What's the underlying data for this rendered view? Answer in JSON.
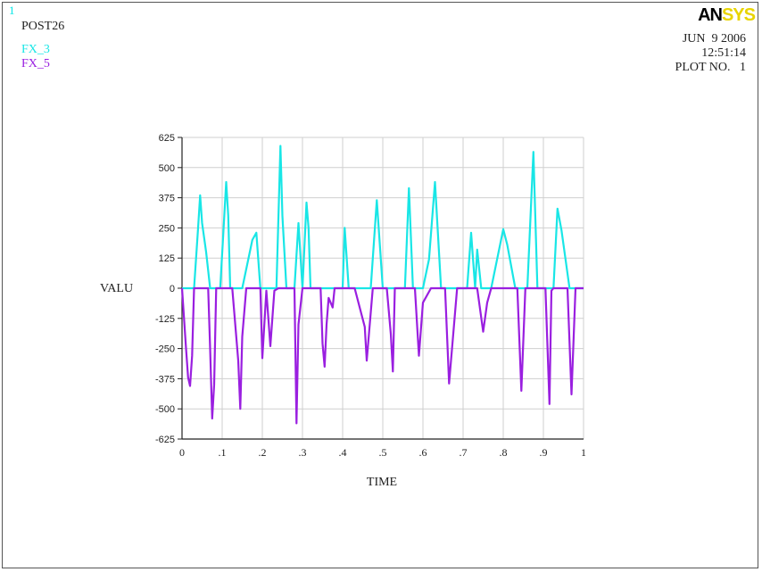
{
  "header": {
    "plot_index": "1",
    "program": "POST26",
    "logo_part1": "AN",
    "logo_part2": "SYS",
    "date": "JUN  9 2006",
    "time": "12:51:14",
    "plot_no": "PLOT NO.   1"
  },
  "colors": {
    "fx3": "#19e6e6",
    "fx5": "#9a1fe0",
    "grid": "#cfcfcf",
    "axis": "#222222"
  },
  "chart_data": {
    "type": "line",
    "xlabel": "TIME",
    "ylabel": "VALU",
    "xlim": [
      0,
      1
    ],
    "ylim": [
      -625,
      625
    ],
    "xticks": [
      0,
      0.1,
      0.2,
      0.3,
      0.4,
      0.5,
      0.6,
      0.7,
      0.8,
      0.9,
      1
    ],
    "xtick_labels": [
      "0",
      ".1",
      ".2",
      ".3",
      ".4",
      ".5",
      ".6",
      ".7",
      ".8",
      ".9",
      "1"
    ],
    "yticks": [
      625,
      500,
      375,
      250,
      125,
      0,
      -125,
      -250,
      -375,
      -500,
      -625
    ],
    "ytick_labels": [
      "625",
      "500",
      "375",
      "250",
      "125",
      "0",
      "-125",
      "-250",
      "-375",
      "-500",
      "-625"
    ],
    "grid": true,
    "legend_position": "top-left",
    "series": [
      {
        "name": "FX_3",
        "x": [
          0,
          0.03,
          0.04,
          0.045,
          0.05,
          0.06,
          0.07,
          0.095,
          0.11,
          0.115,
          0.12,
          0.13,
          0.15,
          0.175,
          0.185,
          0.195,
          0.215,
          0.235,
          0.245,
          0.25,
          0.26,
          0.28,
          0.29,
          0.3,
          0.31,
          0.315,
          0.32,
          0.335,
          0.4,
          0.405,
          0.415,
          0.455,
          0.47,
          0.485,
          0.5,
          0.555,
          0.565,
          0.575,
          0.6,
          0.615,
          0.63,
          0.645,
          0.71,
          0.72,
          0.73,
          0.735,
          0.745,
          0.77,
          0.8,
          0.81,
          0.83,
          0.86,
          0.875,
          0.885,
          0.925,
          0.935,
          0.945,
          0.965,
          1.0
        ],
        "y": [
          0,
          0,
          250,
          385,
          270,
          150,
          0,
          0,
          440,
          300,
          0,
          0,
          0,
          200,
          230,
          0,
          0,
          0,
          590,
          300,
          0,
          0,
          270,
          0,
          355,
          250,
          0,
          0,
          0,
          250,
          0,
          0,
          0,
          365,
          0,
          0,
          415,
          0,
          0,
          120,
          440,
          0,
          0,
          230,
          0,
          160,
          0,
          0,
          245,
          180,
          0,
          0,
          565,
          0,
          0,
          330,
          240,
          0,
          0
        ]
      },
      {
        "name": "FX_5",
        "x": [
          0,
          0.01,
          0.015,
          0.02,
          0.025,
          0.03,
          0.065,
          0.07,
          0.075,
          0.08,
          0.085,
          0.125,
          0.14,
          0.145,
          0.15,
          0.16,
          0.195,
          0.2,
          0.21,
          0.22,
          0.23,
          0.24,
          0.28,
          0.285,
          0.29,
          0.3,
          0.345,
          0.35,
          0.355,
          0.36,
          0.365,
          0.375,
          0.38,
          0.43,
          0.455,
          0.46,
          0.475,
          0.51,
          0.52,
          0.525,
          0.53,
          0.58,
          0.59,
          0.6,
          0.62,
          0.655,
          0.665,
          0.685,
          0.735,
          0.75,
          0.76,
          0.77,
          0.835,
          0.845,
          0.855,
          0.905,
          0.915,
          0.92,
          0.925,
          0.96,
          0.97,
          0.98,
          1.0
        ],
        "y": [
          0,
          -250,
          -370,
          -405,
          -280,
          0,
          0,
          -250,
          -540,
          -400,
          0,
          0,
          -300,
          -500,
          -200,
          0,
          0,
          -290,
          -10,
          -240,
          -10,
          0,
          0,
          -560,
          -150,
          0,
          0,
          -230,
          -325,
          -150,
          -40,
          -80,
          0,
          0,
          -160,
          -300,
          0,
          0,
          -190,
          -345,
          0,
          0,
          -280,
          -60,
          0,
          0,
          -395,
          0,
          0,
          -180,
          -60,
          0,
          0,
          -425,
          0,
          0,
          -480,
          -10,
          0,
          0,
          -440,
          0,
          0
        ]
      }
    ]
  }
}
